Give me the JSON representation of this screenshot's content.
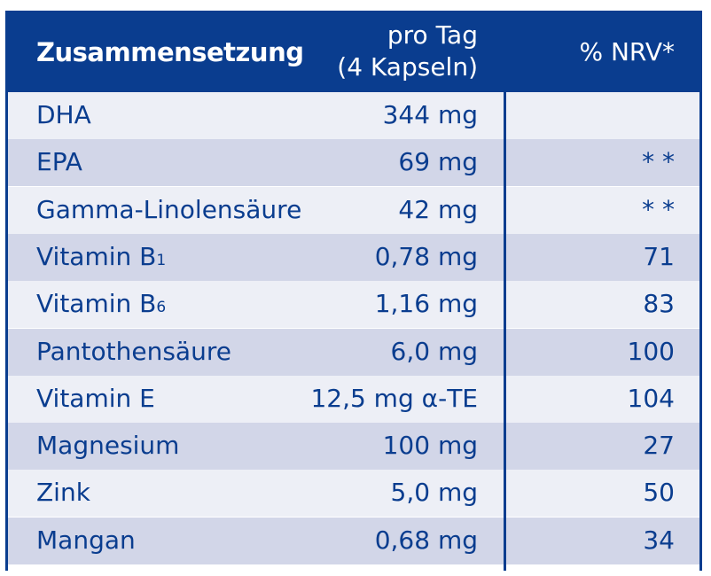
{
  "header": {
    "composition": "Zusammensetzung",
    "per_day_line1": "pro Tag",
    "per_day_line2": "(4 Kapseln)",
    "nrv": "% NRV*"
  },
  "colors": {
    "header_bg": "#0a3d8f",
    "text": "#0a3d8f",
    "row_light": "#edeff6",
    "row_dark": "#d2d6e8"
  },
  "rows": [
    {
      "name": "DHA",
      "sub": "",
      "amount": "344 mg",
      "nrv": ""
    },
    {
      "name": "EPA",
      "sub": "",
      "amount": "69 mg",
      "nrv": "* *"
    },
    {
      "name": "Gamma-Linolensäure",
      "sub": "",
      "amount": "42 mg",
      "nrv": "* *"
    },
    {
      "name": "Vitamin B",
      "sub": "1",
      "amount": "0,78 mg",
      "nrv": "71"
    },
    {
      "name": "Vitamin B",
      "sub": "6",
      "amount": "1,16 mg",
      "nrv": "83"
    },
    {
      "name": "Pantothensäure",
      "sub": "",
      "amount": "6,0 mg",
      "nrv": "100"
    },
    {
      "name": "Vitamin E",
      "sub": "",
      "amount": "12,5 mg α-TE",
      "nrv": "104"
    },
    {
      "name": "Magnesium",
      "sub": "",
      "amount": "100 mg",
      "nrv": "27"
    },
    {
      "name": "Zink",
      "sub": "",
      "amount": "5,0 mg",
      "nrv": "50"
    },
    {
      "name": "Mangan",
      "sub": "",
      "amount": "0,68 mg",
      "nrv": "34"
    }
  ]
}
